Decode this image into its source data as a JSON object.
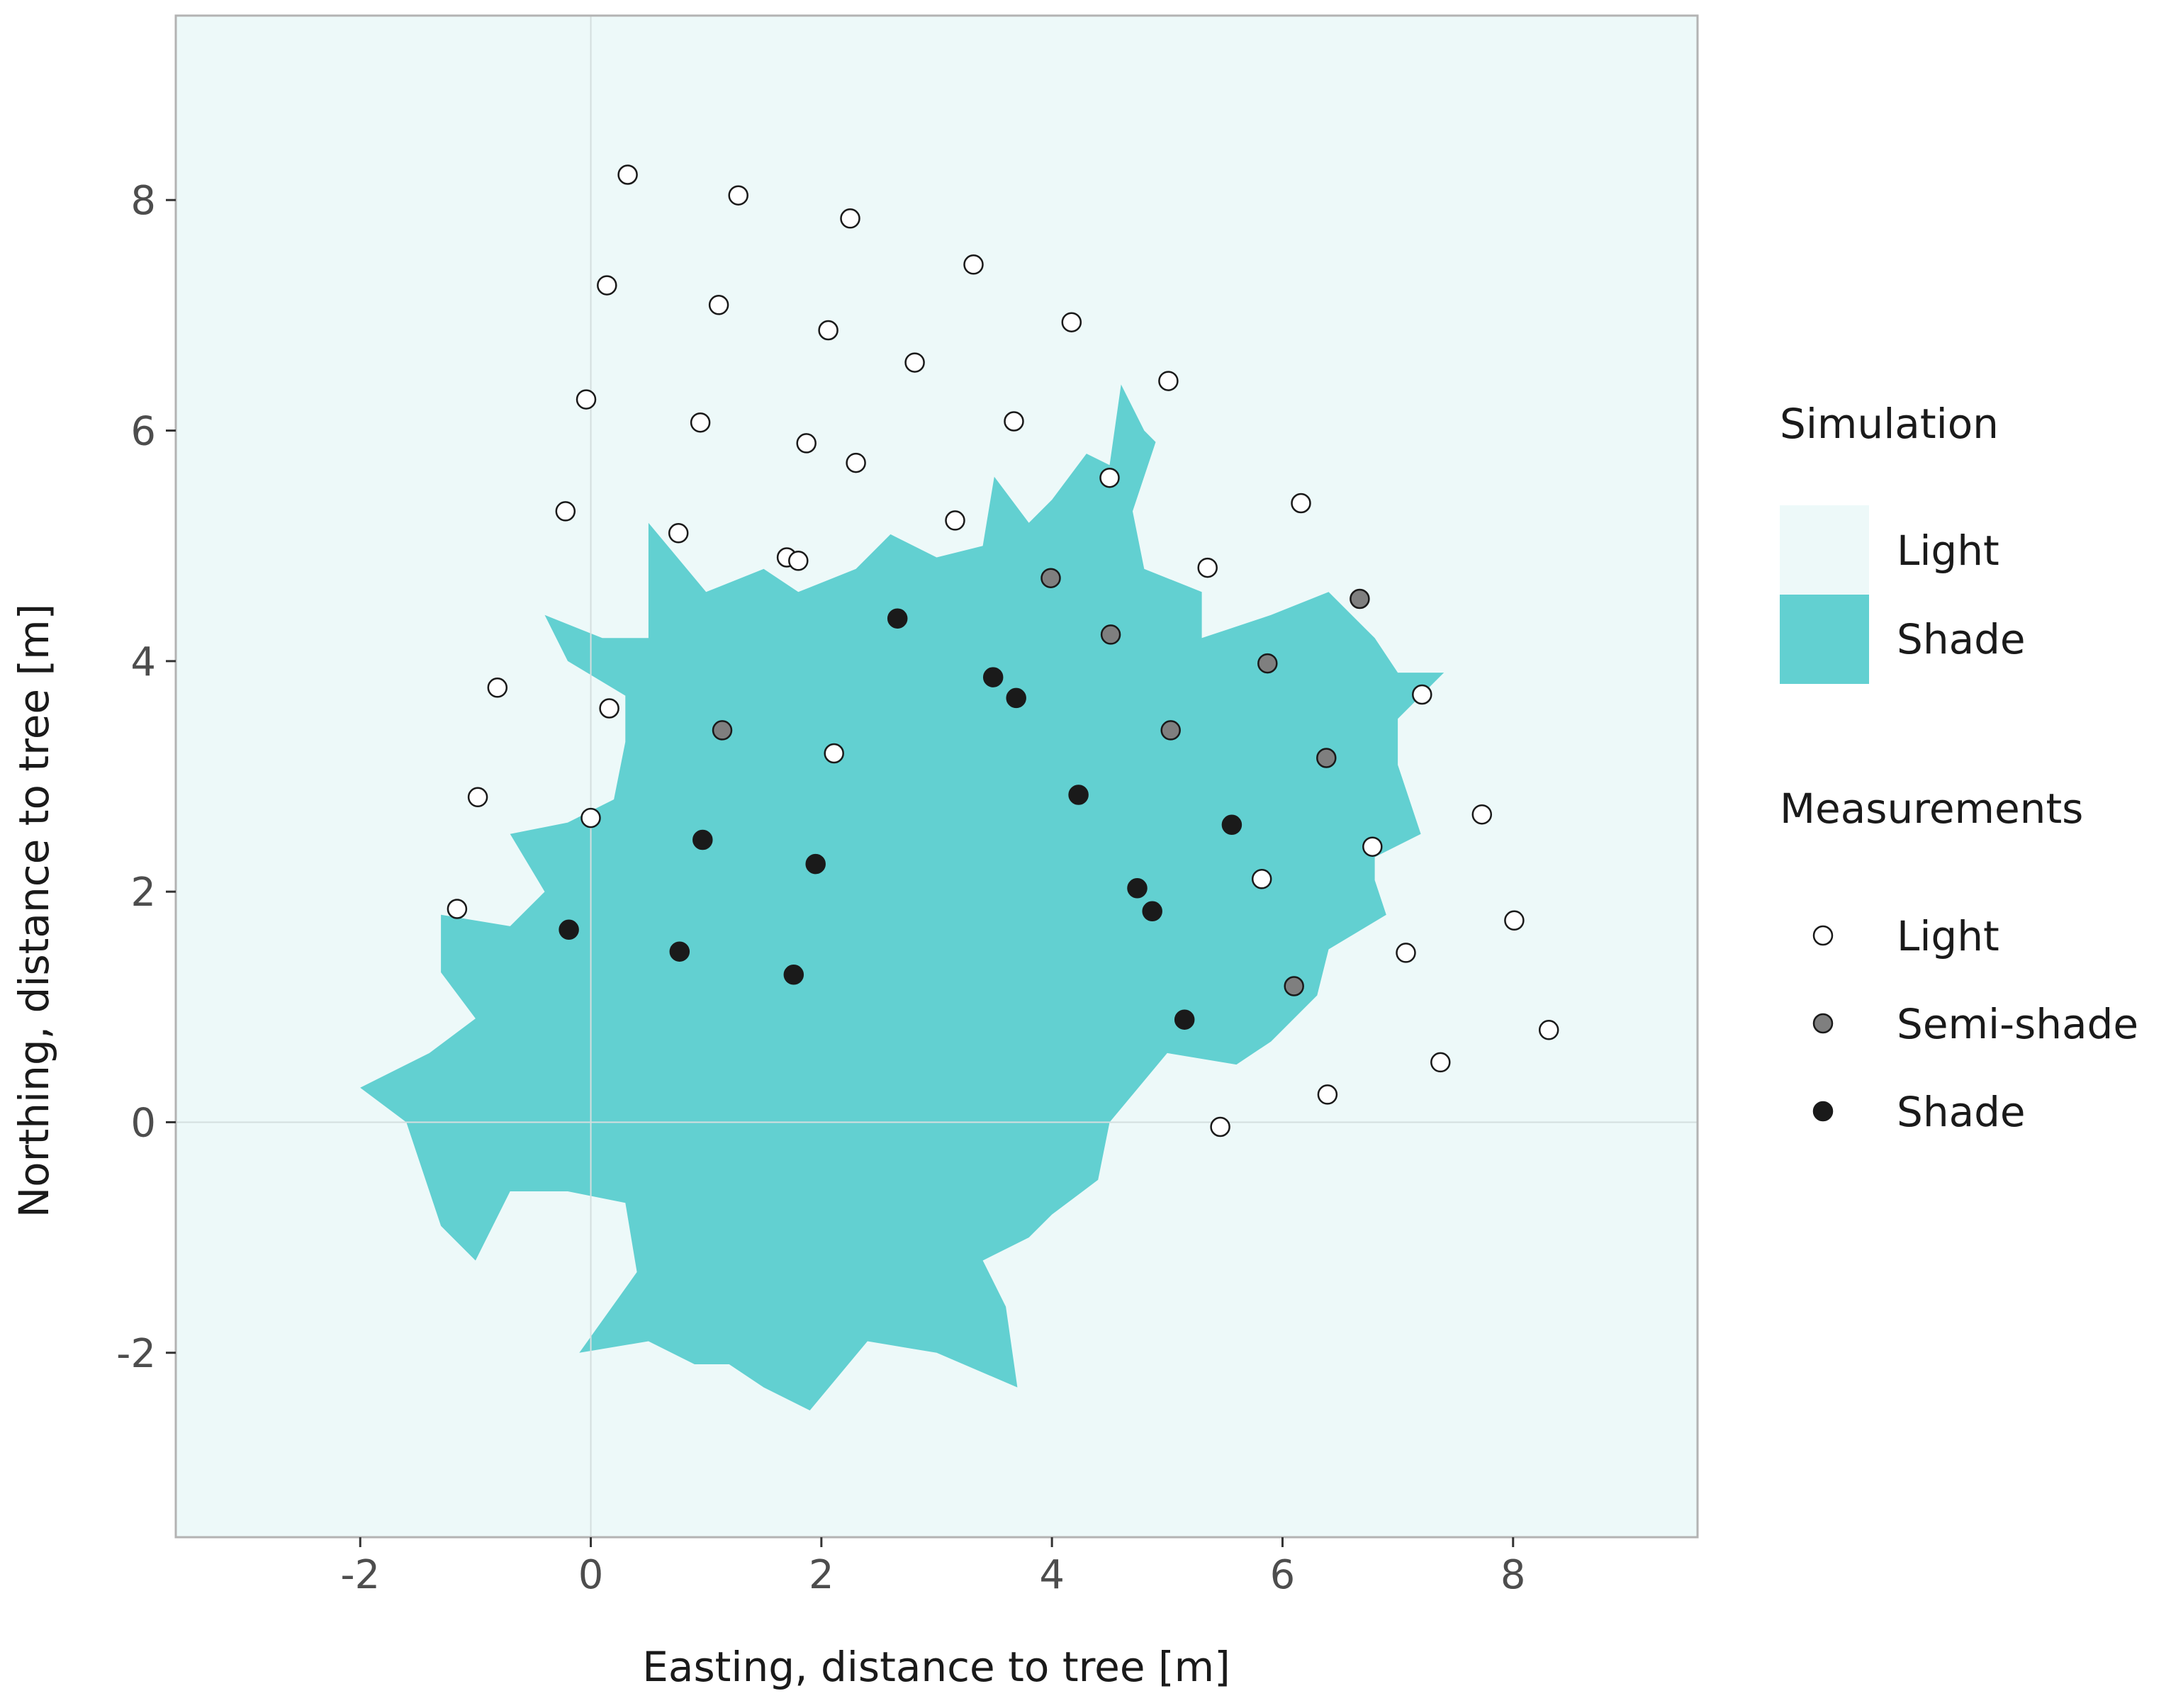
{
  "chart_data": {
    "type": "scatter",
    "title": "",
    "xlabel": "Easting, distance to tree [m]",
    "ylabel": "Northing, distance to tree [m]",
    "xlim": [
      -3.6,
      9.6
    ],
    "ylim": [
      -3.6,
      9.6
    ],
    "x_ticks": [
      -2,
      0,
      2,
      4,
      6,
      8
    ],
    "y_ticks": [
      -2,
      0,
      2,
      4,
      6,
      8
    ],
    "x_tick_labels": [
      "-2",
      "0",
      "2",
      "4",
      "6",
      "8"
    ],
    "y_tick_labels": [
      "-2",
      "0",
      "2",
      "4",
      "6",
      "8"
    ],
    "grid": false,
    "reference_lines": {
      "x": 0,
      "y": 0
    },
    "colors": {
      "panel_background": "#edf9f9",
      "shade_area": "#62d0d1",
      "border": "#b3b3b3",
      "light_point": "#ffffff",
      "semi_shade_point": "#7f7f7f",
      "shade_point": "#1a1a1a",
      "point_stroke": "#1a1a1a"
    },
    "legend": {
      "position": "right",
      "simulation": {
        "title": "Simulation",
        "entries": [
          {
            "label": "Light",
            "color": "#edf9f9"
          },
          {
            "label": "Shade",
            "color": "#62d0d1"
          }
        ]
      },
      "measurements": {
        "title": "Measurements",
        "entries": [
          {
            "label": "Light",
            "color": "#ffffff"
          },
          {
            "label": "Semi-shade",
            "color": "#7f7f7f"
          },
          {
            "label": "Shade",
            "color": "#1a1a1a"
          }
        ]
      }
    },
    "simulation_shade_outline": [
      [
        -2.0,
        0.3
      ],
      [
        -1.4,
        0.6
      ],
      [
        -1.0,
        0.9
      ],
      [
        -1.3,
        1.3
      ],
      [
        -1.3,
        1.8
      ],
      [
        -0.7,
        1.7
      ],
      [
        -0.4,
        2.0
      ],
      [
        -0.7,
        2.5
      ],
      [
        -0.2,
        2.6
      ],
      [
        0.2,
        2.8
      ],
      [
        0.3,
        3.3
      ],
      [
        0.3,
        3.7
      ],
      [
        -0.2,
        4.0
      ],
      [
        -0.4,
        4.4
      ],
      [
        0.1,
        4.2
      ],
      [
        0.5,
        4.2
      ],
      [
        0.5,
        5.2
      ],
      [
        1.0,
        4.6
      ],
      [
        1.5,
        4.8
      ],
      [
        1.8,
        4.6
      ],
      [
        2.3,
        4.8
      ],
      [
        2.6,
        5.1
      ],
      [
        3.0,
        4.9
      ],
      [
        3.4,
        5.0
      ],
      [
        3.5,
        5.6
      ],
      [
        3.8,
        5.2
      ],
      [
        4.0,
        5.4
      ],
      [
        4.3,
        5.8
      ],
      [
        4.5,
        5.7
      ],
      [
        4.6,
        6.4
      ],
      [
        4.8,
        6.0
      ],
      [
        4.9,
        5.9
      ],
      [
        4.7,
        5.3
      ],
      [
        4.8,
        4.8
      ],
      [
        5.3,
        4.6
      ],
      [
        5.3,
        4.2
      ],
      [
        5.9,
        4.4
      ],
      [
        6.4,
        4.6
      ],
      [
        6.8,
        4.2
      ],
      [
        7.0,
        3.9
      ],
      [
        7.4,
        3.9
      ],
      [
        7.0,
        3.5
      ],
      [
        7.0,
        3.1
      ],
      [
        7.2,
        2.5
      ],
      [
        6.8,
        2.3
      ],
      [
        6.8,
        2.1
      ],
      [
        6.9,
        1.8
      ],
      [
        6.4,
        1.5
      ],
      [
        6.3,
        1.1
      ],
      [
        5.9,
        0.7
      ],
      [
        5.6,
        0.5
      ],
      [
        5.0,
        0.6
      ],
      [
        4.5,
        0.0
      ],
      [
        4.4,
        -0.5
      ],
      [
        4.0,
        -0.8
      ],
      [
        3.8,
        -1.0
      ],
      [
        3.4,
        -1.2
      ],
      [
        3.6,
        -1.6
      ],
      [
        3.7,
        -2.3
      ],
      [
        3.0,
        -2.0
      ],
      [
        2.4,
        -1.9
      ],
      [
        1.9,
        -2.5
      ],
      [
        1.5,
        -2.3
      ],
      [
        1.2,
        -2.1
      ],
      [
        0.9,
        -2.1
      ],
      [
        0.5,
        -1.9
      ],
      [
        -0.1,
        -2.0
      ],
      [
        0.4,
        -1.3
      ],
      [
        0.3,
        -0.7
      ],
      [
        -0.2,
        -0.6
      ],
      [
        -0.7,
        -0.6
      ],
      [
        -1.0,
        -1.2
      ],
      [
        -1.3,
        -0.9
      ],
      [
        -1.6,
        0.0
      ],
      [
        -2.0,
        0.3
      ]
    ],
    "series": [
      {
        "name": "Light",
        "x": [
          0.32,
          1.28,
          2.25,
          3.32,
          0.14,
          1.11,
          2.06,
          4.17,
          2.81,
          -0.04,
          0.95,
          3.67,
          5.01,
          1.87,
          2.3,
          -0.22,
          4.5,
          3.16,
          6.16,
          0.76,
          1.7,
          1.8,
          5.35,
          -0.81,
          0.16,
          7.21,
          2.11,
          -0.98,
          7.73,
          0.0,
          6.78,
          5.82,
          -1.16,
          8.01,
          7.07,
          8.31,
          7.37,
          6.39,
          5.46
        ],
        "y": [
          8.22,
          8.04,
          7.84,
          7.44,
          7.26,
          7.09,
          6.87,
          6.94,
          6.59,
          6.27,
          6.07,
          6.08,
          6.43,
          5.89,
          5.72,
          5.3,
          5.59,
          5.22,
          5.37,
          5.11,
          4.9,
          4.87,
          4.81,
          3.77,
          3.59,
          3.71,
          3.2,
          2.82,
          2.67,
          2.64,
          2.39,
          2.11,
          1.85,
          1.75,
          1.47,
          0.8,
          0.52,
          0.24,
          -0.04
        ]
      },
      {
        "name": "Semi-shade",
        "x": [
          3.99,
          6.67,
          4.51,
          5.87,
          1.14,
          5.03,
          6.38,
          6.1
        ],
        "y": [
          4.72,
          4.54,
          4.23,
          3.98,
          3.4,
          3.4,
          3.16,
          1.18
        ]
      },
      {
        "name": "Shade",
        "x": [
          2.66,
          3.49,
          3.69,
          4.23,
          5.56,
          0.97,
          1.95,
          4.74,
          4.87,
          -0.19,
          0.77,
          1.76,
          5.15
        ],
        "y": [
          4.37,
          3.86,
          3.68,
          2.84,
          2.58,
          2.45,
          2.24,
          2.03,
          1.83,
          1.67,
          1.48,
          1.28,
          0.89
        ]
      }
    ]
  }
}
